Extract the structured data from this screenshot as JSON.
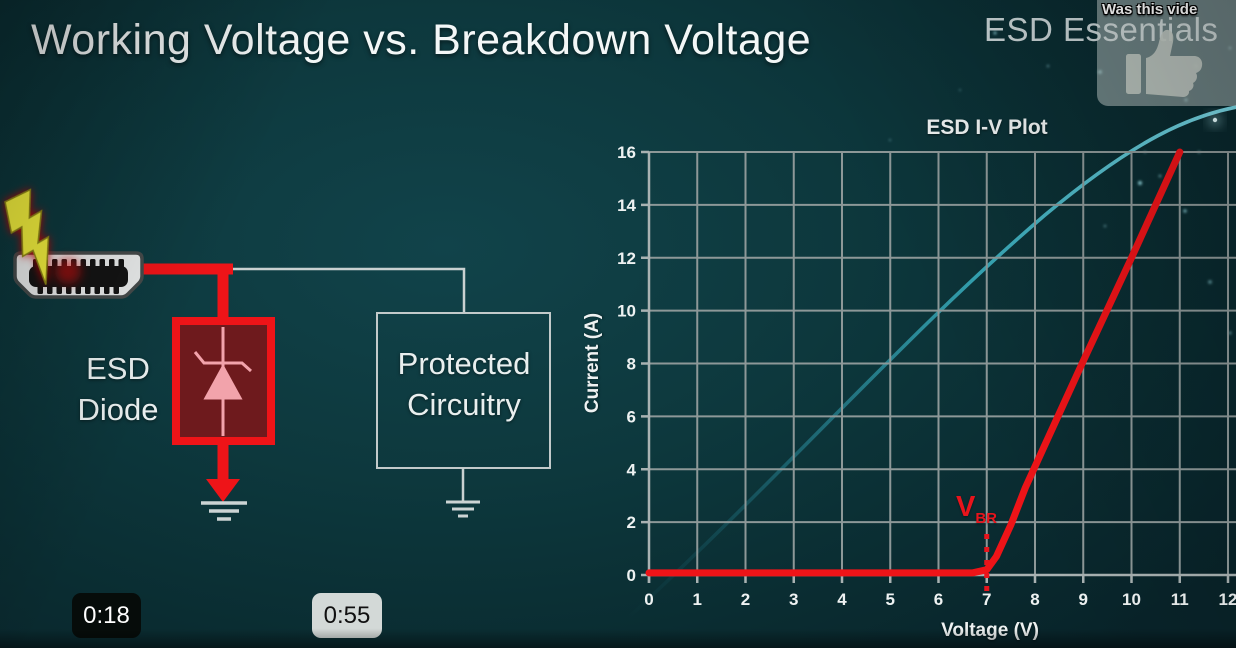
{
  "header": {
    "title": "Working Voltage vs. Breakdown Voltage",
    "brand": "ESD Essentials"
  },
  "overlay": {
    "prompt": "Was this vide",
    "icon": "thumbs-up-icon"
  },
  "player": {
    "timestamps": [
      {
        "label": "0:18",
        "style": "dark"
      },
      {
        "label": "0:55",
        "style": "light"
      }
    ]
  },
  "circuit": {
    "esd_diode_label": {
      "line1": "ESD",
      "line2": "Diode"
    },
    "protected_label": {
      "line1": "Protected",
      "line2": "Circuitry"
    },
    "icons": [
      "lightning-bolt-icon",
      "hdmi-connector-icon",
      "esd-diode-symbol",
      "ground-symbol-icon"
    ],
    "colors": {
      "surge_red": "#ee1418",
      "diode_fill": "#6e1a1d",
      "diode_symbol": "#f2a3ab",
      "wire_gray": "#c9d1d1"
    }
  },
  "chart_data": {
    "type": "line",
    "title": "ESD I-V Plot",
    "xlabel": "Voltage (V)",
    "ylabel": "Current (A)",
    "xlim": [
      0,
      12
    ],
    "ylim": [
      0,
      16
    ],
    "x_ticks": [
      0,
      1,
      2,
      3,
      4,
      5,
      6,
      7,
      8,
      9,
      10,
      11,
      12
    ],
    "y_ticks": [
      0,
      2,
      4,
      6,
      8,
      10,
      12,
      14,
      16
    ],
    "grid": true,
    "grid_color": "#8d9898",
    "series": [
      {
        "name": "ESD diode I-V curve",
        "color": "#ee1418",
        "points": [
          [
            0,
            0.08
          ],
          [
            6.7,
            0.08
          ],
          [
            7.0,
            0.2
          ],
          [
            7.2,
            0.7
          ],
          [
            7.5,
            1.9
          ],
          [
            7.8,
            3.3
          ],
          [
            8.2,
            4.9
          ],
          [
            9,
            8.1
          ],
          [
            10,
            12
          ],
          [
            11,
            16
          ]
        ]
      }
    ],
    "annotations": [
      {
        "label": "V",
        "sub": "BR",
        "x": 7,
        "y_top": 1.55,
        "style": "dotted-vline",
        "color": "#e8141c"
      }
    ]
  }
}
